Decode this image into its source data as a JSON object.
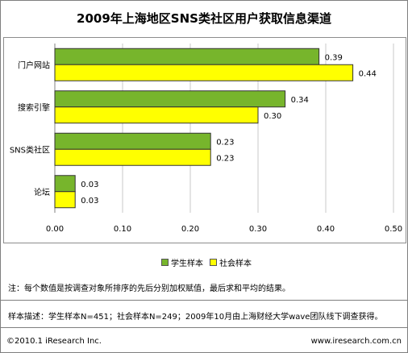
{
  "chart_data": {
    "type": "bar",
    "orientation": "horizontal",
    "title": "2009年上海地区SNS类社区用户获取信息渠道",
    "categories": [
      "门户网站",
      "搜索引擎",
      "SNS类社区",
      "论坛"
    ],
    "series": [
      {
        "name": "学生样本",
        "color": "#77b52c",
        "values": [
          0.39,
          0.34,
          0.23,
          0.03
        ]
      },
      {
        "name": "社会样本",
        "color": "#ffff00",
        "values": [
          0.44,
          0.3,
          0.23,
          0.03
        ]
      }
    ],
    "value_labels": [
      [
        "0.39",
        "0.34",
        "0.23",
        "0.03"
      ],
      [
        "0.44",
        "0.30",
        "0.23",
        "0.03"
      ]
    ],
    "xlim": [
      0,
      0.5
    ],
    "xticks": [
      "0.00",
      "0.10",
      "0.20",
      "0.30",
      "0.40",
      "0.50"
    ],
    "grid": true,
    "legend_position": "bottom",
    "note": "注：每个数值是按调查对象所排序的先后分别加权赋值，最后求和平均的结果。",
    "sample": "样本描述：学生样本N=451；社会样本N=249；2009年10月由上海财经大学wave团队线下调查获得。",
    "footer_left": "©2010.1 iResearch Inc.",
    "footer_right": "www.iresearch.com.cn"
  }
}
